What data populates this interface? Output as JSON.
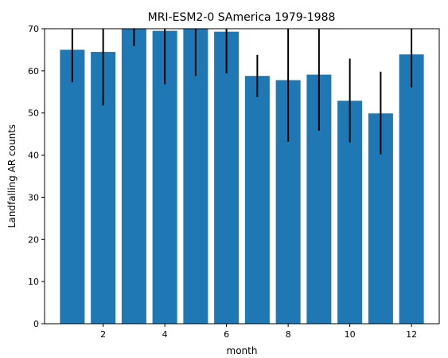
{
  "chart_data": {
    "type": "bar",
    "title": "MRI-ESM2-0 SAmerica 1979-1988",
    "xlabel": "month",
    "ylabel": "Landfalling AR counts",
    "x": [
      1,
      2,
      3,
      4,
      5,
      6,
      7,
      8,
      9,
      10,
      11,
      12
    ],
    "values": [
      65.0,
      64.5,
      70.0,
      69.5,
      70.0,
      69.3,
      58.8,
      57.8,
      59.1,
      52.9,
      49.9,
      63.9
    ],
    "error_low": [
      57.3,
      51.8,
      65.9,
      56.8,
      58.8,
      59.4,
      53.8,
      43.2,
      45.8,
      43.0,
      40.2,
      56.1
    ],
    "error_high": [
      70,
      70,
      70,
      70,
      70,
      70,
      63.8,
      70,
      70,
      62.9,
      59.8,
      70
    ],
    "bar_color": "#1f77b4",
    "error_color": "#000000",
    "xlim": [
      0.1,
      12.9
    ],
    "ylim": [
      0,
      70
    ],
    "x_ticks": [
      2,
      4,
      6,
      8,
      10,
      12
    ],
    "y_ticks": [
      0,
      10,
      20,
      30,
      40,
      50,
      60,
      70
    ],
    "grid": false,
    "legend": "none"
  }
}
